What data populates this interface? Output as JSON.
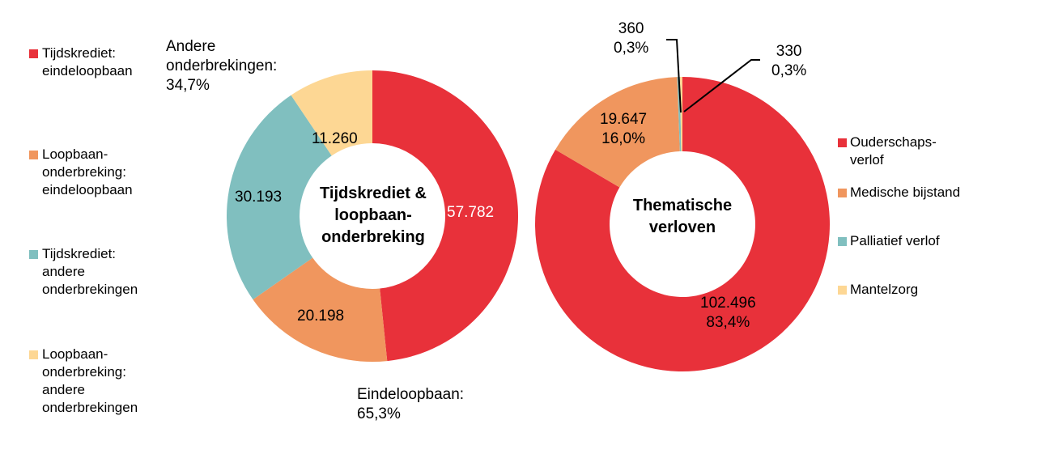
{
  "chart_data": [
    {
      "type": "pie",
      "donut": true,
      "center_label": "Tijdskrediet & loopbaan-onderbreking",
      "slices": [
        {
          "name": "Tijdskrediet: eindeloopbaan",
          "value": 57782,
          "label": "57.782",
          "color": "#E8313A"
        },
        {
          "name": "Loopbaan-onderbreking: eindeloopbaan",
          "value": 20198,
          "label": "20.198",
          "color": "#F0965E"
        },
        {
          "name": "Tijdskrediet: andere onderbrekingen",
          "value": 30193,
          "label": "30.193",
          "color": "#80BFBF"
        },
        {
          "name": "Loopbaan-onderbreking: andere onderbrekingen",
          "value": 11260,
          "label": "11.260",
          "color": "#FDD794"
        }
      ],
      "annotations": [
        {
          "text": "Andere onderbrekingen: 34,7%",
          "lines": [
            "Andere",
            "onderbrekingen:",
            "34,7%"
          ]
        },
        {
          "text": "Eindeloopbaan: 65,3%",
          "lines": [
            "Eindeloopbaan:",
            "65,3%"
          ]
        }
      ],
      "legend": {
        "placement": "left"
      }
    },
    {
      "type": "pie",
      "donut": true,
      "center_label": "Thematische verloven",
      "slices": [
        {
          "name": "Ouderschaps-verlof",
          "value": 102496,
          "label": "102.496",
          "percent": "83,4%",
          "color": "#E8313A"
        },
        {
          "name": "Medische bijstand",
          "value": 19647,
          "label": "19.647",
          "percent": "16,0%",
          "color": "#F0965E"
        },
        {
          "name": "Palliatief verlof",
          "value": 360,
          "label": "360",
          "percent": "0,3%",
          "color": "#80BFBF"
        },
        {
          "name": "Mantelzorg",
          "value": 330,
          "label": "330",
          "percent": "0,3%",
          "color": "#FDD794"
        }
      ],
      "legend": {
        "placement": "right"
      }
    }
  ],
  "legend_left": [
    {
      "lines": [
        "Tijdskrediet:",
        "eindeloopbaan"
      ],
      "color": "#E8313A"
    },
    {
      "lines": [
        "Loopbaan-",
        "onderbreking:",
        "eindeloopbaan"
      ],
      "color": "#F0965E"
    },
    {
      "lines": [
        "Tijdskrediet:",
        "andere",
        "onderbrekingen"
      ],
      "color": "#80BFBF"
    },
    {
      "lines": [
        "Loopbaan-",
        "onderbreking:",
        "andere",
        "onderbrekingen"
      ],
      "color": "#FDD794"
    }
  ],
  "legend_right": [
    {
      "lines": [
        "Ouderschaps-",
        "verlof"
      ],
      "color": "#E8313A"
    },
    {
      "lines": [
        "Medische bijstand"
      ],
      "color": "#F0965E"
    },
    {
      "lines": [
        "Palliatief verlof"
      ],
      "color": "#80BFBF"
    },
    {
      "lines": [
        "Mantelzorg"
      ],
      "color": "#FDD794"
    }
  ],
  "center": {
    "left": [
      "Tijdskrediet &",
      "loopbaan-",
      "onderbreking"
    ],
    "right": [
      "Thematische",
      "verloven"
    ]
  }
}
